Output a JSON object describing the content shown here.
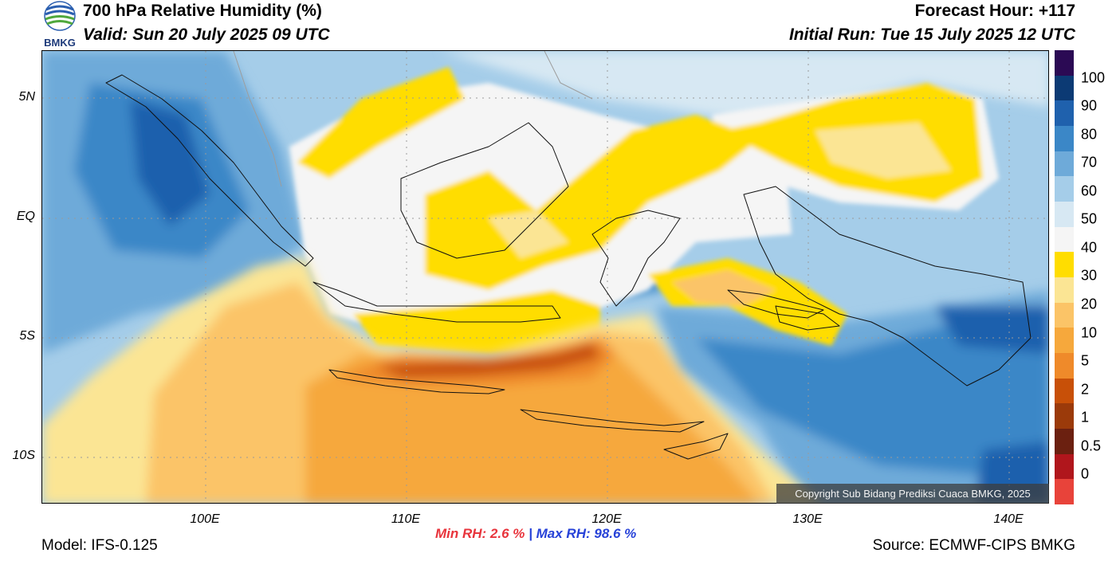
{
  "header": {
    "title": "700 hPa Relative Humidity (%)",
    "valid": "Valid: Sun 20 July 2025 09 UTC",
    "forecast_hour": "Forecast Hour: +117",
    "initial_run": "Initial Run: Tue 15 July 2025 12 UTC"
  },
  "logo": {
    "text": "BMKG",
    "icon": "bmkg-logo"
  },
  "axes": {
    "lat_labels": [
      "5N",
      "EQ",
      "5S",
      "10S"
    ],
    "lon_labels": [
      "100E",
      "110E",
      "120E",
      "130E",
      "140E"
    ]
  },
  "colorbar": {
    "labels": [
      "100",
      "90",
      "80",
      "70",
      "60",
      "50",
      "40",
      "30",
      "20",
      "10",
      "5",
      "2",
      "1",
      "0.5",
      "0"
    ],
    "colors": [
      "#2b0a54",
      "#0c3a74",
      "#1f61ad",
      "#3b87c7",
      "#6eaad9",
      "#a5cde9",
      "#d7e8f3",
      "#f5f5f5",
      "#ffdd00",
      "#fbe594",
      "#fbc467",
      "#f6a83c",
      "#ef8a2a",
      "#c85008",
      "#9b3a0a",
      "#6b2010",
      "#b0161c",
      "#e8433a"
    ]
  },
  "stats": {
    "min_rh": "Min RH:   2.6 %",
    "separator": "|",
    "max_rh": "Max RH:  98.6 %"
  },
  "footer": {
    "model": "Model: IFS-0.125",
    "source": "Source: ECMWF-CIPS BMKG"
  },
  "copyright": "Copyright Sub Bidang Prediksi Cuaca BMKG, 2025"
}
